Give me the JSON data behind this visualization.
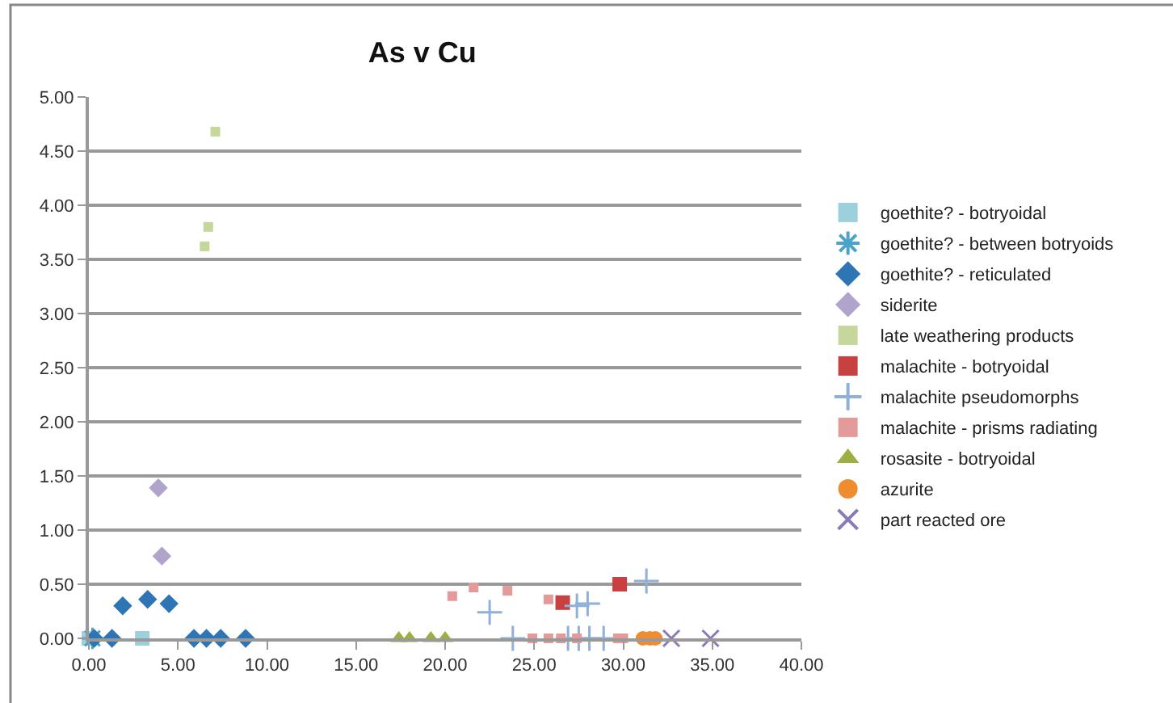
{
  "chart_data": {
    "type": "scatter",
    "title": "As v Cu",
    "xlim": [
      0,
      40
    ],
    "ylim": [
      0,
      5
    ],
    "xticks": [
      {
        "value": 0,
        "label": "0.00"
      },
      {
        "value": 5,
        "label": "5.00"
      },
      {
        "value": 10,
        "label": "10.00"
      },
      {
        "value": 15,
        "label": "15.00"
      },
      {
        "value": 20,
        "label": "20.00"
      },
      {
        "value": 25,
        "label": "25.00"
      },
      {
        "value": 30,
        "label": "30.00"
      },
      {
        "value": 35,
        "label": "35.00"
      },
      {
        "value": 40,
        "label": "40.00"
      }
    ],
    "yticks": [
      {
        "value": 0,
        "label": "0.00"
      },
      {
        "value": 0.5,
        "label": "0.50"
      },
      {
        "value": 1,
        "label": "1.00"
      },
      {
        "value": 1.5,
        "label": "1.50"
      },
      {
        "value": 2,
        "label": "2.00"
      },
      {
        "value": 2.5,
        "label": "2.50"
      },
      {
        "value": 3,
        "label": "3.00"
      },
      {
        "value": 3.5,
        "label": "3.50"
      },
      {
        "value": 4,
        "label": "4.00"
      },
      {
        "value": 4.5,
        "label": "4.50"
      },
      {
        "value": 5,
        "label": "5.00"
      }
    ],
    "grid": "y",
    "legend": "right",
    "series": [
      {
        "name": "goethite? - botryoidal",
        "color": "#9bd0dc",
        "marker": "square",
        "x": [
          0.0,
          3.0
        ],
        "values": [
          0,
          0
        ]
      },
      {
        "name": "goethite? - between botryoids",
        "color": "#4aa3c8",
        "marker": "cross",
        "x": [
          0.2
        ],
        "values": [
          0
        ]
      },
      {
        "name": "goethite? - reticulated",
        "color": "#2e75b6",
        "marker": "diamond",
        "x": [
          0.3,
          1.3,
          1.9,
          3.3,
          4.5,
          5.9,
          6.6,
          7.4,
          8.8
        ],
        "values": [
          0,
          0,
          0.3,
          0.36,
          0.32,
          0,
          0,
          0,
          0
        ]
      },
      {
        "name": "siderite",
        "color": "#b0a3cc",
        "marker": "diamond",
        "x": [
          3.9,
          4.1
        ],
        "values": [
          1.39,
          0.76
        ]
      },
      {
        "name": "late weathering products",
        "color": "#c5d79a",
        "marker": "square",
        "x": [
          6.5,
          6.7,
          7.1
        ],
        "values": [
          3.62,
          3.8,
          4.68
        ]
      },
      {
        "name": "malachite - botryoidal",
        "color": "#c84040",
        "marker": "square",
        "x": [
          26.6,
          29.8
        ],
        "values": [
          0.33,
          0.5
        ]
      },
      {
        "name": "malachite pseudomorphs",
        "color": "#8fb0d8",
        "marker": "cross",
        "x": [
          22.5,
          27.4,
          28.0,
          31.3,
          23.8,
          26.9,
          27.5,
          28.1,
          28.9
        ],
        "values": [
          0.24,
          0.3,
          0.32,
          0.53,
          0,
          0,
          0,
          0,
          0
        ]
      },
      {
        "name": "malachite - prisms radiating",
        "color": "#e59a9a",
        "marker": "square",
        "x": [
          20.4,
          21.6,
          23.5,
          25.8,
          24.9,
          25.8,
          26.5,
          27.4,
          29.7,
          30.0
        ],
        "values": [
          0.39,
          0.47,
          0.44,
          0.36,
          0,
          0,
          0,
          0,
          0,
          0
        ]
      },
      {
        "name": "rosasite - botryoidal",
        "color": "#9bb040",
        "marker": "triangle",
        "x": [
          17.4,
          18.0,
          19.2,
          20.0
        ],
        "values": [
          0,
          0,
          0,
          0
        ]
      },
      {
        "name": "azurite",
        "color": "#f08c30",
        "marker": "circle",
        "x": [
          31.1,
          31.5,
          31.8
        ],
        "values": [
          0,
          0,
          0
        ]
      },
      {
        "name": "part reacted ore",
        "color": "#8a7ab8",
        "marker": "x",
        "x": [
          32.7,
          34.9
        ],
        "values": [
          0,
          0
        ]
      }
    ]
  }
}
